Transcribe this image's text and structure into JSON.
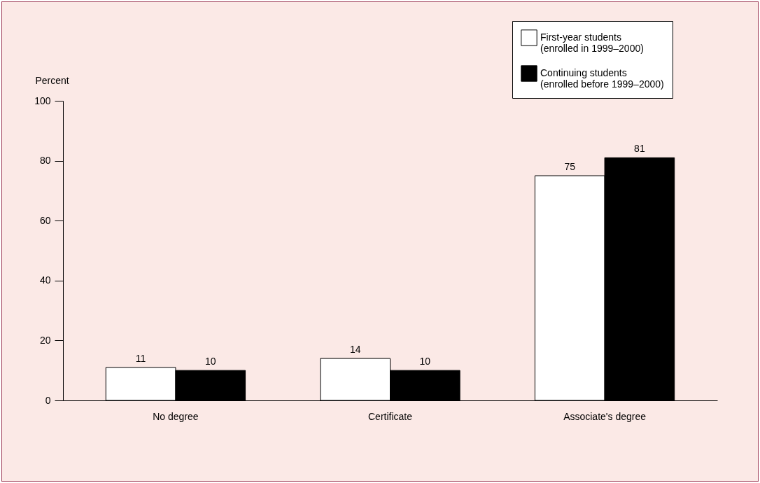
{
  "chart_data": {
    "type": "bar",
    "ylabel": "Percent",
    "categories": [
      "No degree",
      "Certificate",
      "Associate's degree"
    ],
    "series": [
      {
        "name": "First-year students (enrolled in 1999–2000)",
        "color": "#ffffff",
        "values": [
          11,
          14,
          75
        ]
      },
      {
        "name": "Continuing students (enrolled before 1999–2000)",
        "color": "#000000",
        "values": [
          10,
          10,
          81
        ]
      }
    ],
    "ylim": [
      0,
      100
    ],
    "yticks": [
      0,
      20,
      40,
      60,
      80,
      100
    ],
    "grid": false,
    "legend": "top right",
    "data_labels": true
  }
}
